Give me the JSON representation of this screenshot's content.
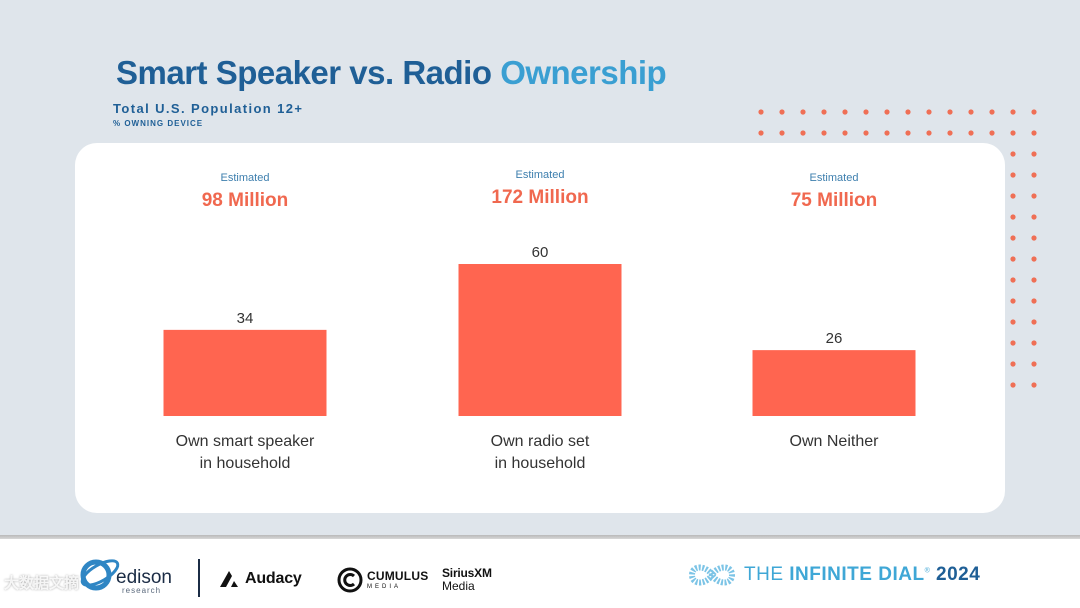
{
  "header": {
    "title_part1": "Smart Speaker vs. Radio",
    "title_part2": "Ownership",
    "subtitle": "Total U.S. Population 12+",
    "sub_subtitle": "% OWNING DEVICE"
  },
  "colors": {
    "bar": "#ff6550",
    "estimate_value": "#f0684f",
    "estimate_label": "#3e7fae",
    "title_dark": "#1f5f96",
    "title_light": "#3a9fd2",
    "dots": "#ef6f55"
  },
  "chart_data": {
    "type": "bar",
    "categories": [
      "Own smart speaker in household",
      "Own radio set in household",
      "Own Neither"
    ],
    "category_lines": [
      [
        "Own smart speaker",
        "in household"
      ],
      [
        "Own radio set",
        "in household"
      ],
      [
        "Own Neither"
      ]
    ],
    "values": [
      34,
      60,
      26
    ],
    "value_labels": [
      "34",
      "60",
      "26"
    ],
    "estimates": [
      {
        "label": "Estimated",
        "value": "98 Million"
      },
      {
        "label": "Estimated",
        "value": "172 Million"
      },
      {
        "label": "Estimated",
        "value": "75 Million"
      }
    ],
    "title": "Smart Speaker vs. Radio Ownership",
    "ylim": [
      0,
      60
    ],
    "grid": false
  },
  "footer": {
    "logos": {
      "edison": "edison",
      "edison_sub": "research",
      "audacy": "Audacy",
      "cumulus": "CUMULUS",
      "cumulus_sub": "MEDIA",
      "sirius_line1": "SiriusXM",
      "sirius_line2": "Media"
    },
    "brand": {
      "the": "THE",
      "infinite": "INFINITE",
      "dial": "DIAL",
      "tm": "®",
      "year": "2024"
    },
    "watermark": "大数据文摘"
  }
}
